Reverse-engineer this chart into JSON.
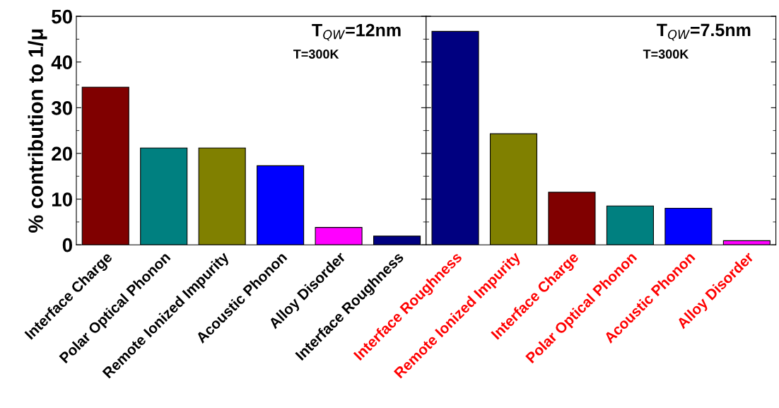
{
  "chart_data": [
    {
      "type": "bar",
      "ylabel": "% contribution to 1/μ",
      "categories": [
        "Interface Charge",
        "Polar Optical Phonon",
        "Remote Ionized Impurity",
        "Acoustic Phonon",
        "Alloy Disorder",
        "Interface Roughness"
      ],
      "values": [
        34.5,
        21.2,
        21.2,
        17.3,
        3.8,
        1.9
      ],
      "colors": [
        "#800000",
        "#008080",
        "#808000",
        "#0000ff",
        "#ff00ff",
        "#000080"
      ],
      "ylim": [
        0,
        50
      ],
      "yticks": [
        0,
        10,
        20,
        30,
        40,
        50
      ],
      "grid": false,
      "legend": false,
      "annotations": [
        "T$_{QW}$=12nm",
        "T=300K"
      ]
    },
    {
      "type": "bar",
      "categories": [
        "Interface Roughness",
        "Remote Ionized Impurity",
        "Interface Charge",
        "Polar Optical Phonon",
        "Acoustic Phonon",
        "Alloy Disorder"
      ],
      "values": [
        46.7,
        24.3,
        11.5,
        8.5,
        8.0,
        0.9
      ],
      "colors": [
        "#000080",
        "#808000",
        "#800000",
        "#008080",
        "#0000ff",
        "#ff00ff"
      ],
      "ylim": [
        0,
        50
      ],
      "yticks": [
        0,
        10,
        20,
        30,
        40,
        50
      ],
      "tick_labels": "x",
      "grid": false,
      "legend": false,
      "annotations": [
        "T$_{QW}$=7.5nm",
        "T=300K"
      ]
    }
  ]
}
